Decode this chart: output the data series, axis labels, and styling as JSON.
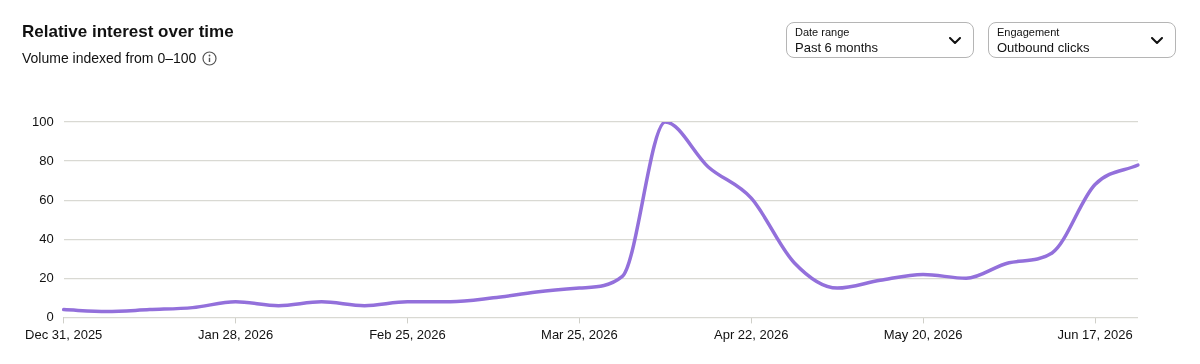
{
  "chart_data": {
    "type": "line",
    "title": "Relative interest over time",
    "subtitle": "Volume indexed from 0–100",
    "annotations": [
      "Date range",
      "Past 6 months",
      "Engagement",
      "Outbound clicks"
    ],
    "categories": [
      "Dec 31, 2025",
      null,
      null,
      null,
      "Jan 28, 2026",
      null,
      null,
      null,
      "Feb 25, 2026",
      null,
      null,
      null,
      "Mar 25, 2026",
      null,
      null,
      null,
      "Apr 22, 2026",
      null,
      null,
      null,
      "May 20, 2026",
      null,
      null,
      null,
      "Jun 17, 2026",
      null
    ],
    "series": [
      {
        "color": "#9370db",
        "values": [
          4,
          3,
          4,
          5,
          8,
          6,
          8,
          6,
          8,
          8,
          10,
          13,
          15,
          21,
          100,
          77,
          61,
          28,
          15,
          19,
          22,
          20,
          28,
          33,
          68,
          78
        ]
      }
    ],
    "ylim": [
      0,
      100
    ],
    "yticks": [
      0,
      20,
      40,
      60,
      80,
      100
    ],
    "grid": "y",
    "legend": false,
    "marker": "none",
    "line_style": "solid"
  }
}
